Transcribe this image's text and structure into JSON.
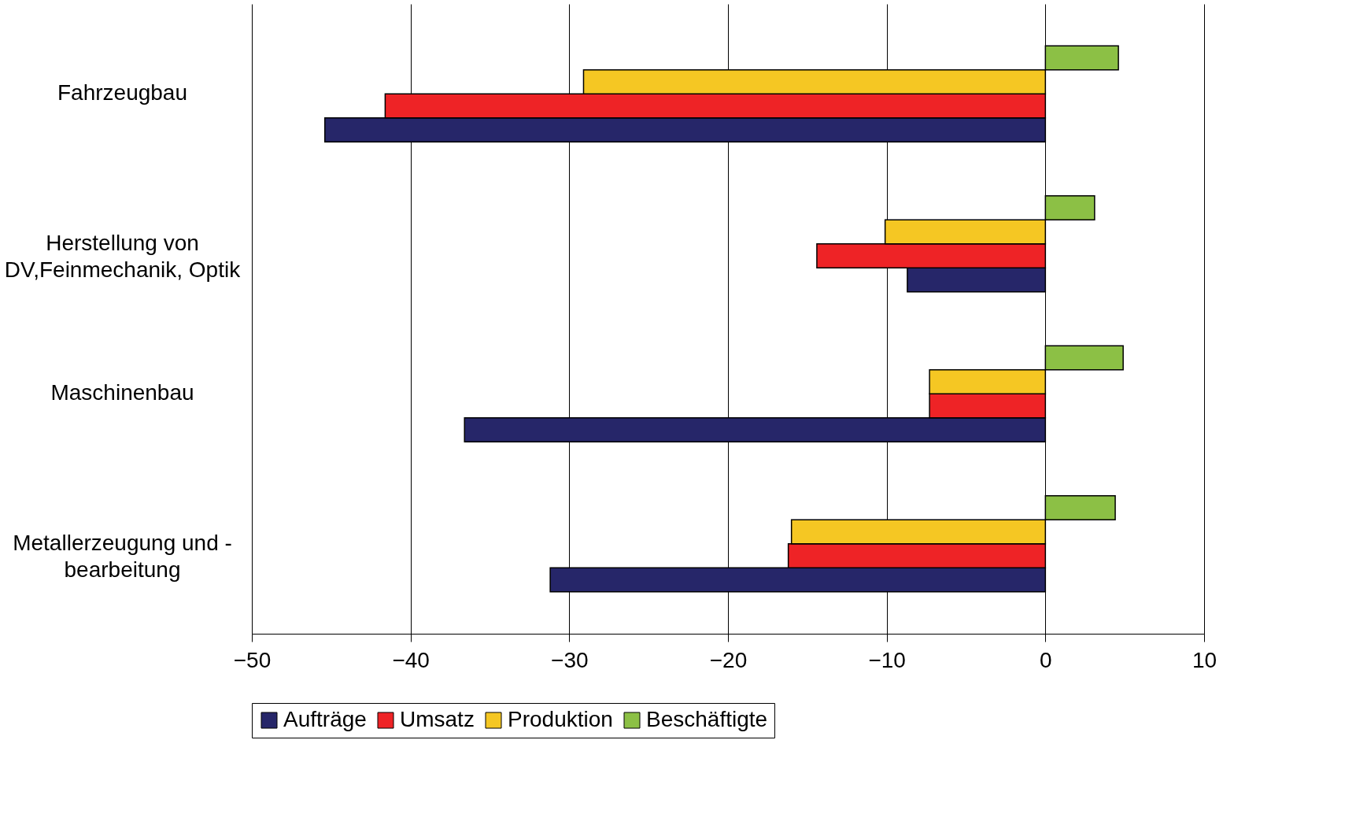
{
  "chart_data": {
    "type": "bar",
    "orientation": "horizontal",
    "categories": [
      "Fahrzeugbau",
      "Herstellung von\nDV,Feinmechanik, Optik",
      "Maschinenbau",
      "Metallerzeugung und -\nbearbeitung"
    ],
    "series": [
      {
        "name": "Aufträge",
        "color": "#262669",
        "values": [
          -45.4,
          -8.7,
          -36.6,
          -31.2
        ]
      },
      {
        "name": "Umsatz",
        "color": "#ee2326",
        "values": [
          -41.6,
          -14.4,
          -7.3,
          -16.2
        ]
      },
      {
        "name": "Produktion",
        "color": "#f5c723",
        "values": [
          -29.1,
          -10.1,
          -7.3,
          -16.0
        ]
      },
      {
        "name": "Beschäftigte",
        "color": "#8cc045",
        "values": [
          4.6,
          3.1,
          4.9,
          4.4
        ]
      }
    ],
    "xlim": [
      -50,
      10
    ],
    "xticks": [
      -50,
      -40,
      -30,
      -20,
      -10,
      0,
      10
    ],
    "grid": "x",
    "legend": "bottom"
  }
}
